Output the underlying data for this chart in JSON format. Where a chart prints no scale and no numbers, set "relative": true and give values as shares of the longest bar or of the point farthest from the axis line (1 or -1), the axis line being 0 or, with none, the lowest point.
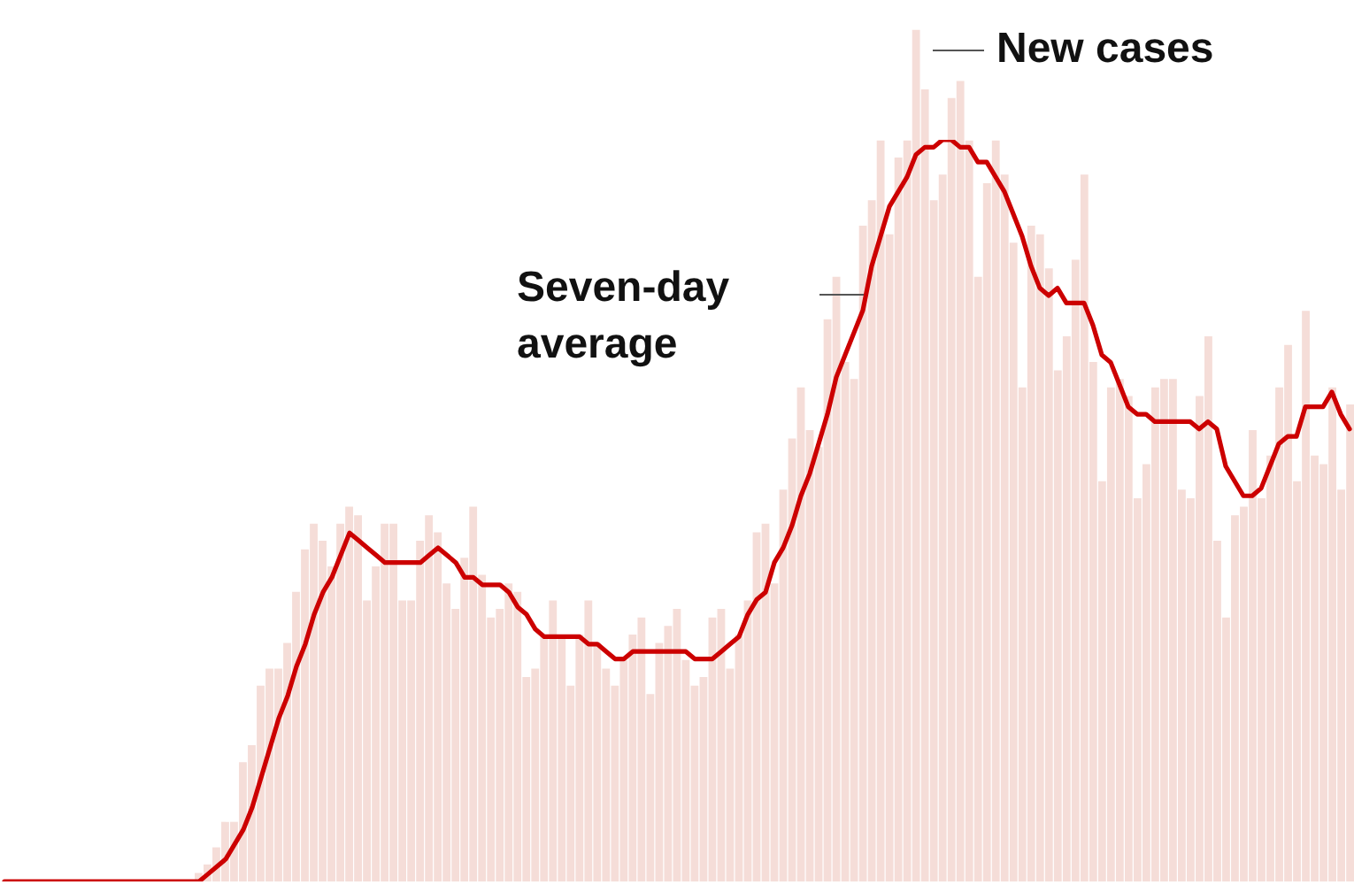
{
  "chart_data": [
    {
      "type": "bar",
      "relative": true,
      "color": "#f5ddd8",
      "annotations": [
        "New cases"
      ],
      "categories": [
        null,
        null,
        null,
        null,
        null,
        null,
        null,
        null,
        null,
        null,
        null,
        null,
        null,
        null,
        null,
        null,
        null,
        null,
        null,
        null,
        null,
        null,
        null,
        null,
        null,
        null,
        null,
        null,
        null,
        null,
        null,
        null,
        null,
        null,
        null,
        null,
        null,
        null,
        null,
        null,
        null,
        null,
        null,
        null,
        null,
        null,
        null,
        null,
        null,
        null,
        null,
        null,
        null,
        null,
        null,
        null,
        null,
        null,
        null,
        null,
        null,
        null,
        null,
        null,
        null,
        null,
        null,
        null,
        null,
        null,
        null,
        null,
        null,
        null,
        null,
        null,
        null,
        null,
        null,
        null,
        null,
        null,
        null,
        null,
        null,
        null,
        null,
        null,
        null,
        null,
        null,
        null,
        null,
        null,
        null,
        null,
        null,
        null,
        null,
        null,
        null,
        null,
        null,
        null,
        null,
        null,
        null,
        null,
        null,
        null,
        null,
        null,
        null,
        null,
        null,
        null,
        null,
        null,
        null,
        null,
        null,
        null,
        null,
        null,
        null,
        null,
        null,
        null,
        null,
        null,
        null
      ],
      "values": [
        0.01,
        0.02,
        0.04,
        0.07,
        0.07,
        0.14,
        0.16,
        0.23,
        0.25,
        0.25,
        0.28,
        0.34,
        0.39,
        0.42,
        0.4,
        0.37,
        0.42,
        0.44,
        0.43,
        0.33,
        0.37,
        0.42,
        0.42,
        0.33,
        0.33,
        0.4,
        0.43,
        0.41,
        0.35,
        0.32,
        0.38,
        0.44,
        0.36,
        0.31,
        0.32,
        0.35,
        0.34,
        0.24,
        0.25,
        0.29,
        0.33,
        0.29,
        0.23,
        0.29,
        0.33,
        0.28,
        0.25,
        0.23,
        0.26,
        0.29,
        0.31,
        0.22,
        0.28,
        0.3,
        0.32,
        0.26,
        0.23,
        0.24,
        0.31,
        0.32,
        0.25,
        0.29,
        0.33,
        0.41,
        0.42,
        0.35,
        0.46,
        0.52,
        0.58,
        0.53,
        0.51,
        0.66,
        0.71,
        0.61,
        0.59,
        0.77,
        0.8,
        0.87,
        0.76,
        0.85,
        0.87,
        1.0,
        0.93,
        0.8,
        0.83,
        0.92,
        0.94,
        0.87,
        0.71,
        0.82,
        0.87,
        0.83,
        0.75,
        0.58,
        0.77,
        0.76,
        0.72,
        0.6,
        0.64,
        0.73,
        0.83,
        0.61,
        0.47,
        0.58,
        0.59,
        0.57,
        0.45,
        0.49,
        0.58,
        0.59,
        0.59,
        0.46,
        0.45,
        0.57,
        0.64,
        0.4,
        0.31,
        0.43,
        0.44,
        0.53,
        0.45,
        0.5,
        0.58,
        0.63,
        0.47,
        0.67,
        0.5,
        0.49,
        0.58,
        0.46,
        0.56
      ]
    },
    {
      "type": "line",
      "relative": true,
      "color": "#cc0000",
      "annotations": [
        "Seven-day average"
      ],
      "categories": [
        null,
        null,
        null,
        null,
        null,
        null,
        null,
        null,
        null,
        null,
        null,
        null,
        null,
        null,
        null,
        null,
        null,
        null,
        null,
        null,
        null,
        null,
        null,
        null,
        null,
        null,
        null,
        null,
        null,
        null,
        null,
        null,
        null,
        null,
        null,
        null,
        null,
        null,
        null,
        null,
        null,
        null,
        null,
        null,
        null,
        null,
        null,
        null,
        null,
        null,
        null,
        null,
        null,
        null,
        null,
        null,
        null,
        null,
        null,
        null,
        null,
        null,
        null,
        null,
        null,
        null,
        null,
        null,
        null,
        null,
        null,
        null,
        null,
        null,
        null,
        null,
        null,
        null,
        null,
        null,
        null,
        null,
        null,
        null,
        null,
        null,
        null,
        null,
        null,
        null,
        null,
        null,
        null,
        null,
        null,
        null,
        null,
        null,
        null,
        null,
        null,
        null,
        null,
        null,
        null,
        null,
        null,
        null,
        null,
        null,
        null,
        null,
        null,
        null,
        null,
        null,
        null,
        null,
        null,
        null,
        null,
        null,
        null,
        null,
        null,
        null,
        null,
        null,
        null,
        null,
        null,
        null,
        null,
        null,
        null,
        null,
        null,
        null,
        null,
        null,
        null,
        null,
        null,
        null,
        null,
        null,
        null,
        null,
        null,
        null,
        null,
        null,
        null
      ],
      "values": [
        0,
        0,
        0,
        0,
        0,
        0,
        0,
        0,
        0,
        0,
        0,
        0,
        0,
        0,
        0,
        0,
        0,
        0,
        0,
        0,
        0,
        0,
        0,
        0.01,
        0.02,
        0.03,
        0.05,
        0.07,
        0.1,
        0.14,
        0.18,
        0.22,
        0.25,
        0.29,
        0.32,
        0.36,
        0.39,
        0.41,
        0.44,
        0.47,
        0.46,
        0.45,
        0.44,
        0.43,
        0.43,
        0.43,
        0.43,
        0.43,
        0.44,
        0.45,
        0.44,
        0.43,
        0.41,
        0.41,
        0.4,
        0.4,
        0.4,
        0.39,
        0.37,
        0.36,
        0.34,
        0.33,
        0.33,
        0.33,
        0.33,
        0.33,
        0.32,
        0.32,
        0.31,
        0.3,
        0.3,
        0.31,
        0.31,
        0.31,
        0.31,
        0.31,
        0.31,
        0.31,
        0.3,
        0.3,
        0.3,
        0.31,
        0.32,
        0.33,
        0.36,
        0.38,
        0.39,
        0.43,
        0.45,
        0.48,
        0.52,
        0.55,
        0.59,
        0.63,
        0.68,
        0.71,
        0.74,
        0.77,
        0.83,
        0.87,
        0.91,
        0.93,
        0.95,
        0.98,
        0.99,
        0.99,
        1,
        1,
        0.99,
        0.99,
        0.97,
        0.97,
        0.95,
        0.93,
        0.9,
        0.87,
        0.83,
        0.8,
        0.79,
        0.8,
        0.78,
        0.78,
        0.78,
        0.75,
        0.71,
        0.7,
        0.67,
        0.64,
        0.63,
        0.63,
        0.62,
        0.62,
        0.62,
        0.62,
        0.62,
        0.61,
        0.62,
        0.61,
        0.56,
        0.54,
        0.52,
        0.52,
        0.53,
        0.56,
        0.59,
        0.6,
        0.6,
        0.64,
        0.64,
        0.64,
        0.66,
        0.63,
        0.61
      ]
    }
  ]
}
